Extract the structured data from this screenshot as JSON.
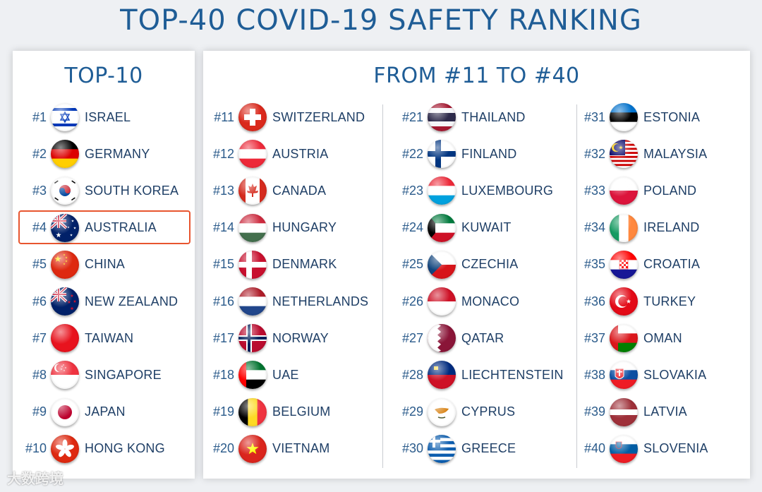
{
  "title": "TOP-40 COVID-19 SAFETY RANKING",
  "left_panel": {
    "title": "TOP-10",
    "highlight_rank": "#4"
  },
  "right_panel": {
    "title": "FROM #11 TO #40"
  },
  "countries": [
    {
      "rank": "#1",
      "name": "ISRAEL",
      "flag": "israel-flag-icon"
    },
    {
      "rank": "#2",
      "name": "GERMANY",
      "flag": "germany-flag-icon"
    },
    {
      "rank": "#3",
      "name": "SOUTH KOREA",
      "flag": "south-korea-flag-icon"
    },
    {
      "rank": "#4",
      "name": "AUSTRALIA",
      "flag": "australia-flag-icon"
    },
    {
      "rank": "#5",
      "name": "CHINA",
      "flag": "china-flag-icon"
    },
    {
      "rank": "#6",
      "name": "NEW ZEALAND",
      "flag": "new-zealand-flag-icon"
    },
    {
      "rank": "#7",
      "name": "TAIWAN",
      "flag": "taiwan-flag-icon"
    },
    {
      "rank": "#8",
      "name": "SINGAPORE",
      "flag": "singapore-flag-icon"
    },
    {
      "rank": "#9",
      "name": "JAPAN",
      "flag": "japan-flag-icon"
    },
    {
      "rank": "#10",
      "name": "HONG KONG",
      "flag": "hong-kong-flag-icon"
    },
    {
      "rank": "#11",
      "name": "SWITZERLAND",
      "flag": "switzerland-flag-icon"
    },
    {
      "rank": "#12",
      "name": "AUSTRIA",
      "flag": "austria-flag-icon"
    },
    {
      "rank": "#13",
      "name": "CANADA",
      "flag": "canada-flag-icon"
    },
    {
      "rank": "#14",
      "name": "HUNGARY",
      "flag": "hungary-flag-icon"
    },
    {
      "rank": "#15",
      "name": "DENMARK",
      "flag": "denmark-flag-icon"
    },
    {
      "rank": "#16",
      "name": "NETHERLANDS",
      "flag": "netherlands-flag-icon"
    },
    {
      "rank": "#17",
      "name": "NORWAY",
      "flag": "norway-flag-icon"
    },
    {
      "rank": "#18",
      "name": "UAE",
      "flag": "uae-flag-icon"
    },
    {
      "rank": "#19",
      "name": "BELGIUM",
      "flag": "belgium-flag-icon"
    },
    {
      "rank": "#20",
      "name": "VIETNAM",
      "flag": "vietnam-flag-icon"
    },
    {
      "rank": "#21",
      "name": "THAILAND",
      "flag": "thailand-flag-icon"
    },
    {
      "rank": "#22",
      "name": "FINLAND",
      "flag": "finland-flag-icon"
    },
    {
      "rank": "#23",
      "name": "LUXEMBOURG",
      "flag": "luxembourg-flag-icon"
    },
    {
      "rank": "#24",
      "name": "KUWAIT",
      "flag": "kuwait-flag-icon"
    },
    {
      "rank": "#25",
      "name": "CZECHIA",
      "flag": "czechia-flag-icon"
    },
    {
      "rank": "#26",
      "name": "MONACO",
      "flag": "monaco-flag-icon"
    },
    {
      "rank": "#27",
      "name": "QATAR",
      "flag": "qatar-flag-icon"
    },
    {
      "rank": "#28",
      "name": "LIECHTENSTEIN",
      "flag": "liechtenstein-flag-icon"
    },
    {
      "rank": "#29",
      "name": "CYPRUS",
      "flag": "cyprus-flag-icon"
    },
    {
      "rank": "#30",
      "name": "GREECE",
      "flag": "greece-flag-icon"
    },
    {
      "rank": "#31",
      "name": "ESTONIA",
      "flag": "estonia-flag-icon"
    },
    {
      "rank": "#32",
      "name": "MALAYSIA",
      "flag": "malaysia-flag-icon"
    },
    {
      "rank": "#33",
      "name": "POLAND",
      "flag": "poland-flag-icon"
    },
    {
      "rank": "#34",
      "name": "IRELAND",
      "flag": "ireland-flag-icon"
    },
    {
      "rank": "#35",
      "name": "CROATIA",
      "flag": "croatia-flag-icon"
    },
    {
      "rank": "#36",
      "name": "TURKEY",
      "flag": "turkey-flag-icon"
    },
    {
      "rank": "#37",
      "name": "OMAN",
      "flag": "oman-flag-icon"
    },
    {
      "rank": "#38",
      "name": "SLOVAKIA",
      "flag": "slovakia-flag-icon"
    },
    {
      "rank": "#39",
      "name": "LATVIA",
      "flag": "latvia-flag-icon"
    },
    {
      "rank": "#40",
      "name": "SLOVENIA",
      "flag": "slovenia-flag-icon"
    }
  ],
  "watermark": "大数跨境",
  "colors": {
    "title": "#1f5d96",
    "rank_text": "#2b5b8b",
    "name_text": "#1f3f66",
    "highlight_border": "#e8552f",
    "background": "#eef0f3",
    "panel": "#ffffff"
  }
}
